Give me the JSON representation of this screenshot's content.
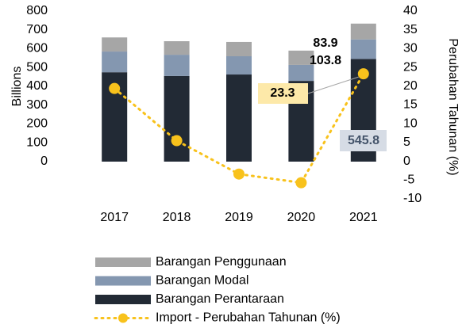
{
  "chart_data": {
    "type": "bar_line",
    "categories": [
      "2017",
      "2018",
      "2019",
      "2020",
      "2021"
    ],
    "series": [
      {
        "name": "Barangan Perantaraan",
        "color": "#222a35",
        "values": [
          475,
          455,
          463,
          429,
          545.8
        ]
      },
      {
        "name": "Barangan Modal",
        "color": "#8497b0",
        "values": [
          110,
          113,
          97,
          85,
          103.8
        ]
      },
      {
        "name": "Barangan Penggunaan",
        "color": "#a6a6a6",
        "values": [
          75,
          72,
          76,
          76,
          83.9
        ]
      },
      {
        "name": "Import - Perubahan Tahunan (%)",
        "color": "#f8c21c",
        "axis": "y2",
        "values": [
          19.4,
          5.5,
          -3.4,
          -5.7,
          23.3
        ]
      }
    ],
    "ylabel": "Billions",
    "y2label": "Perubahan Tahunan (%)",
    "ylim": [
      0,
      800
    ],
    "yticks": [
      0,
      100,
      200,
      300,
      400,
      500,
      600,
      700,
      800
    ],
    "y2lim": [
      -10,
      40
    ],
    "y2ticks": [
      -10,
      -5,
      0,
      5,
      10,
      15,
      20,
      25,
      30,
      35,
      40
    ]
  }
}
